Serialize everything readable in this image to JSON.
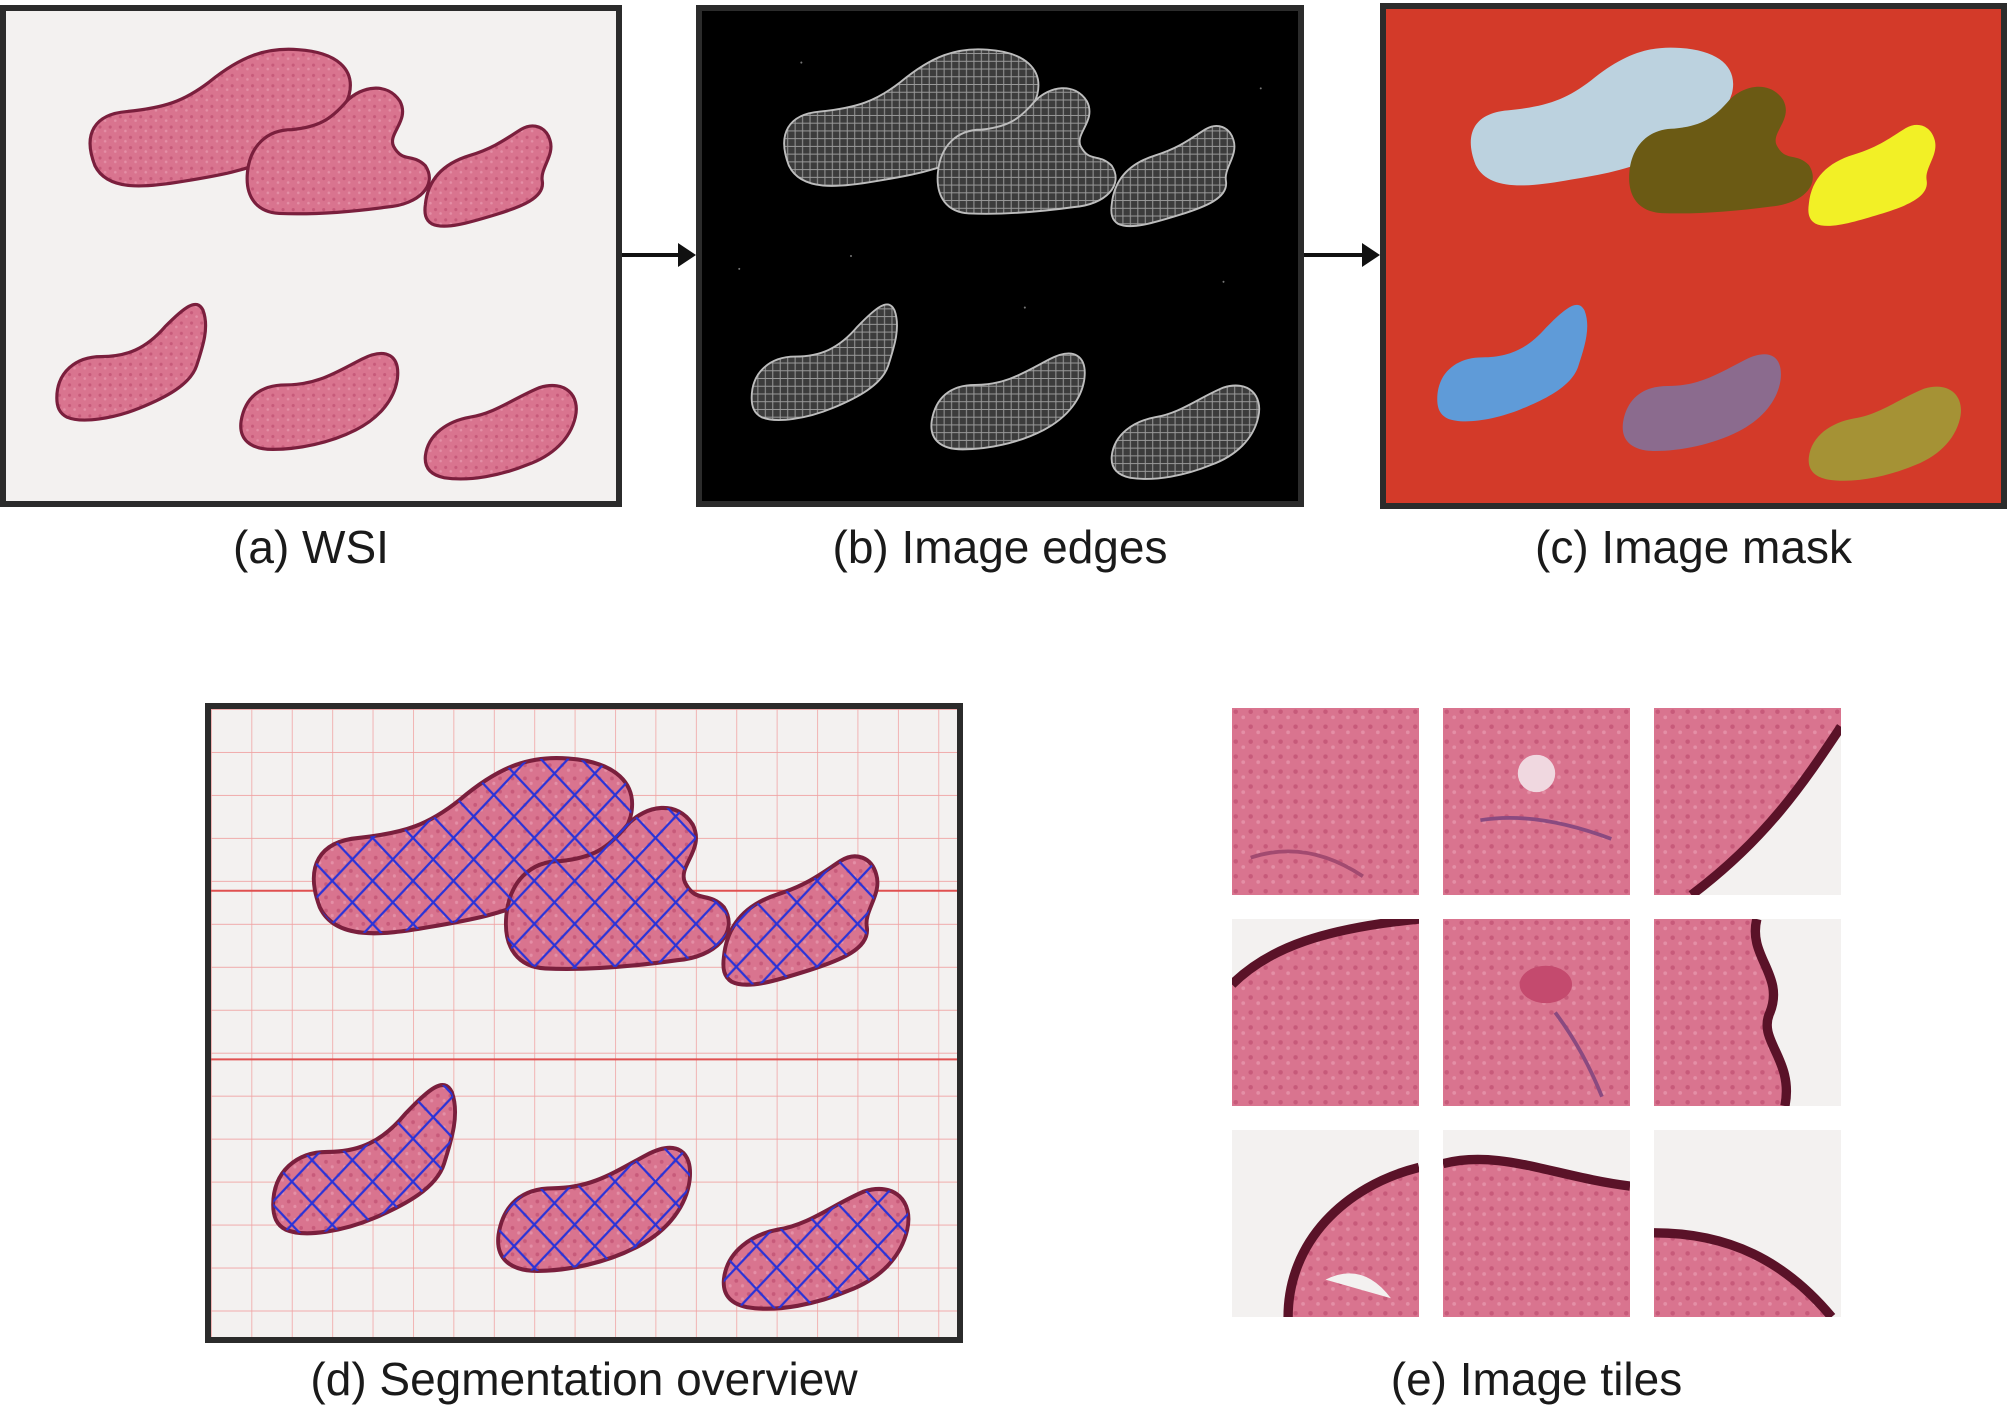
{
  "panels": {
    "a": {
      "caption": "(a) WSI"
    },
    "b": {
      "caption": "(b) Image edges"
    },
    "c": {
      "caption": "(c) Image mask"
    },
    "d": {
      "caption": "(d) Segmentation overview"
    },
    "e": {
      "caption": "(e) Image tiles"
    }
  },
  "colors": {
    "slide_background": "#f3f1f0",
    "tissue": "#d9748f",
    "tissue_edge": "#7a1f3d",
    "edges_background": "#000000",
    "edges_fill": "#7a7a7a",
    "mask_background": "#d33a29",
    "mask_regions": [
      "#bcd2df",
      "#6b5a14",
      "#f2f026",
      "#5f9bd8",
      "#8b6b8e",
      "#a59235"
    ],
    "grid_line": "#f0a2a2",
    "grid_major": "#e05050",
    "tile_cross": "#2a33d8",
    "frame": "#2b2b2b"
  }
}
